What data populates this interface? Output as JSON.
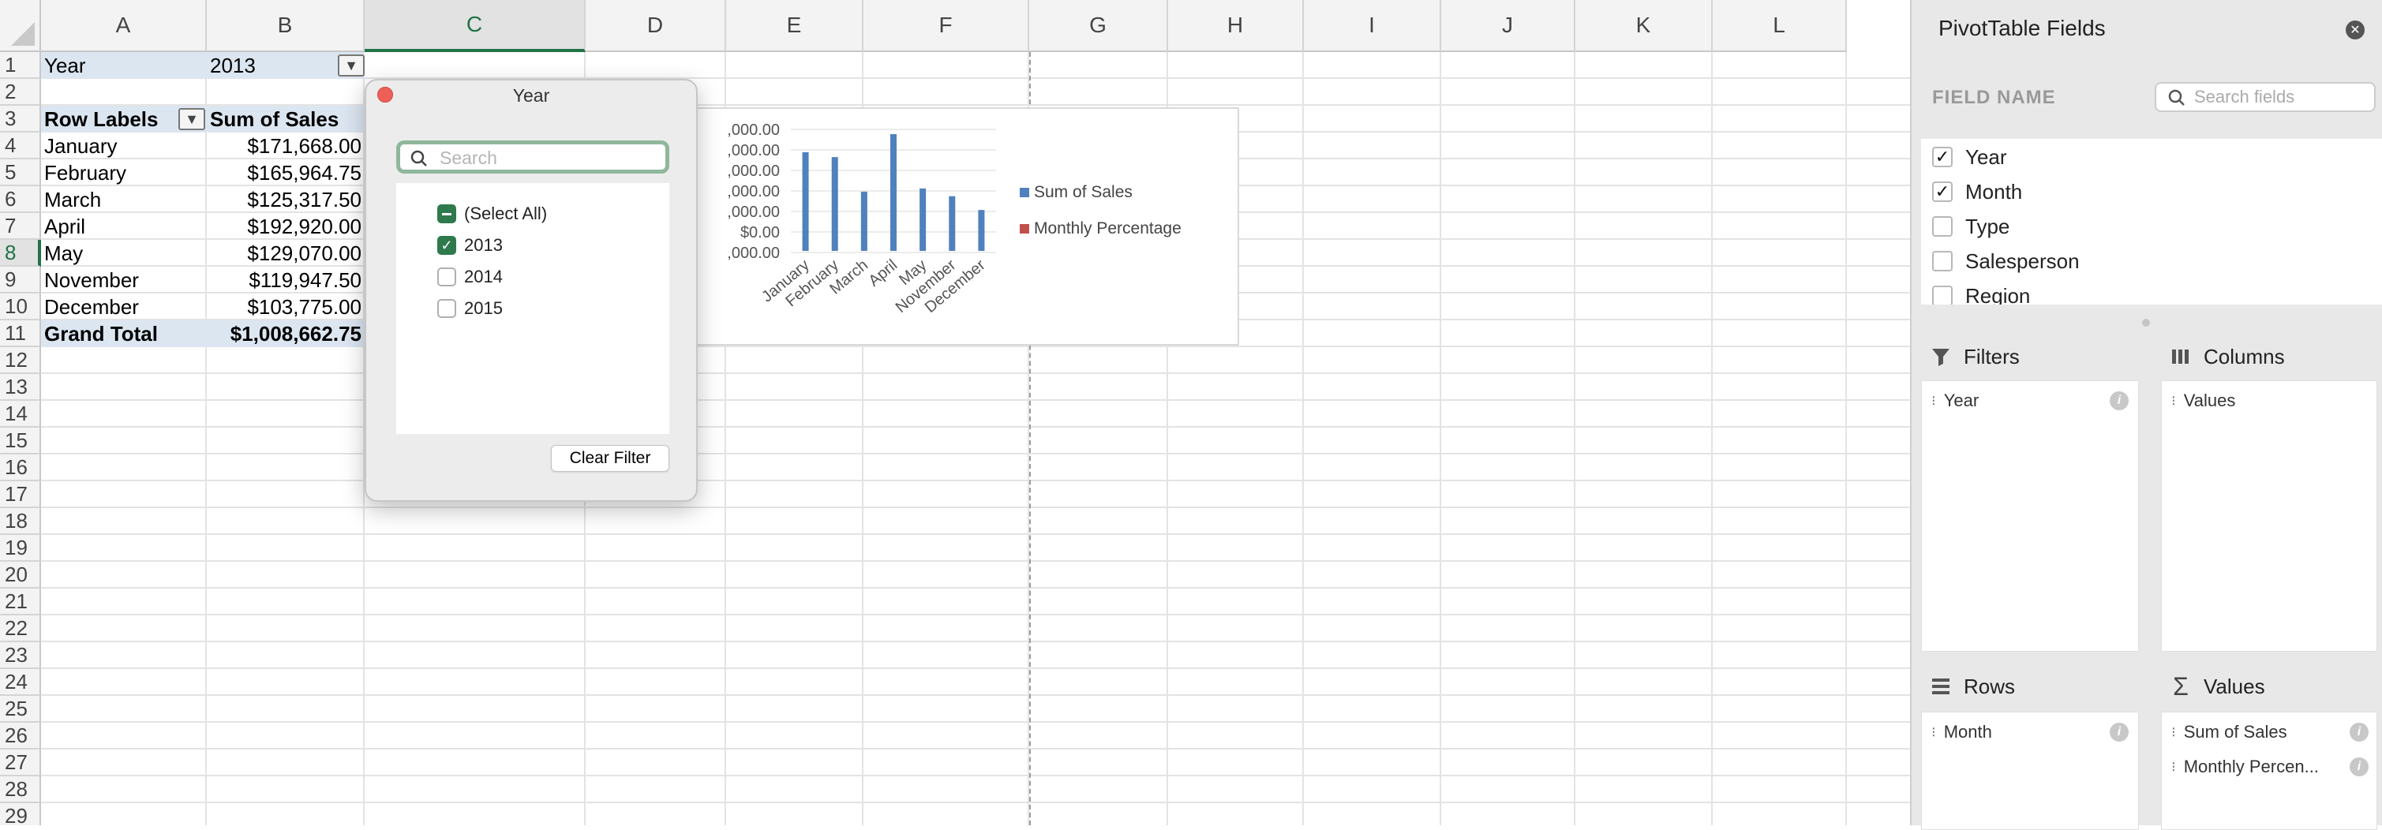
{
  "sheet": {
    "columns": [
      "A",
      "B",
      "C",
      "D",
      "E",
      "F",
      "G",
      "H",
      "I",
      "J",
      "K",
      "L"
    ],
    "rows": [
      "1",
      "2",
      "3",
      "4",
      "5",
      "6",
      "7",
      "8",
      "9",
      "10",
      "11",
      "12",
      "13",
      "14",
      "15",
      "16",
      "17",
      "18",
      "19",
      "20",
      "21",
      "22",
      "23",
      "24",
      "25",
      "26",
      "27",
      "28",
      "29"
    ],
    "selected_column": "C",
    "selected_row": "8"
  },
  "pivot": {
    "filter_label": "Year",
    "filter_value": "2013",
    "row_labels_header": "Row Labels",
    "sum_header": "Sum of Sales",
    "rows": [
      {
        "label": "January",
        "value": "$171,668.00"
      },
      {
        "label": "February",
        "value": "$165,964.75"
      },
      {
        "label": "March",
        "value": "$125,317.50"
      },
      {
        "label": "April",
        "value": "$192,920.00"
      },
      {
        "label": "May",
        "value": "$129,070.00"
      },
      {
        "label": "November",
        "value": "$119,947.50"
      },
      {
        "label": "December",
        "value": "$103,775.00"
      }
    ],
    "grand_total_label": "Grand Total",
    "grand_total_value": "$1,008,662.75"
  },
  "chart_data": {
    "type": "bar",
    "categories": [
      "January",
      "February",
      "March",
      "April",
      "May",
      "November",
      "December"
    ],
    "series": [
      {
        "name": "Sum of Sales",
        "values": [
          171668.0,
          165964.75,
          125317.5,
          192920.0,
          129070.0,
          119947.5,
          103775.0
        ],
        "color": "#4f81bd"
      },
      {
        "name": "Monthly Percentage",
        "values": [
          0,
          0,
          0,
          0,
          0,
          0,
          0
        ],
        "color": "#c0504d"
      }
    ],
    "yticks": [
      ",000.00",
      ",000.00",
      ",000.00",
      ",000.00",
      ",000.00",
      "$0.00",
      ",000.00"
    ],
    "ylim": [
      0,
      250000
    ],
    "legend_position": "right",
    "grid": true
  },
  "popup": {
    "title": "Year",
    "search_placeholder": "Search",
    "items": [
      {
        "label": "(Select All)",
        "state": "mixed"
      },
      {
        "label": "2013",
        "state": "checked"
      },
      {
        "label": "2014",
        "state": "unchecked"
      },
      {
        "label": "2015",
        "state": "unchecked"
      }
    ],
    "clear_label": "Clear Filter"
  },
  "pane": {
    "title": "PivotTable Fields",
    "field_name_label": "FIELD NAME",
    "search_placeholder": "Search fields",
    "fields": [
      {
        "label": "Year",
        "checked": true
      },
      {
        "label": "Month",
        "checked": true
      },
      {
        "label": "Type",
        "checked": false
      },
      {
        "label": "Salesperson",
        "checked": false
      },
      {
        "label": "Region",
        "checked": false
      }
    ],
    "filters_label": "Filters",
    "columns_label": "Columns",
    "rows_label": "Rows",
    "values_label": "Values",
    "filters_items": [
      "Year"
    ],
    "columns_items": [
      "Values"
    ],
    "rows_items": [
      "Month"
    ],
    "values_items": [
      "Sum of Sales",
      "Monthly Percen..."
    ]
  }
}
